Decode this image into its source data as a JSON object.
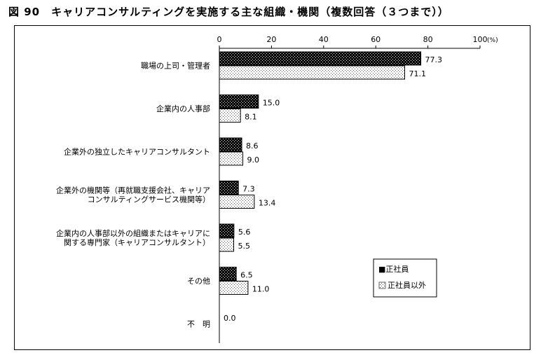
{
  "figure_title": "図 90　キャリアコンサルティングを実施する主な組織・機関（複数回答（３つまで））",
  "chart_data": {
    "type": "bar",
    "orientation": "horizontal",
    "title": "図 90　キャリアコンサルティングを実施する主な組織・機関（複数回答（３つまで））",
    "categories": [
      [
        "職場の上司・管理者"
      ],
      [
        "企業内の人事部"
      ],
      [
        "企業外の独立したキャリアコンサルタント"
      ],
      [
        "企業外の機関等（再就職支援会社、キャリア",
        "コンサルティングサービス機関等）"
      ],
      [
        "企業内の人事部以外の組織またはキャリアに",
        "関する専門家（キャリアコンサルタント）"
      ],
      [
        "その他"
      ],
      [
        "不　明"
      ]
    ],
    "series": [
      {
        "name": "■正社員",
        "values": [
          77.3,
          15.0,
          8.6,
          7.3,
          5.6,
          6.5,
          0.0
        ]
      },
      {
        "name": "正社員以外",
        "values": [
          71.1,
          8.1,
          9.0,
          13.4,
          5.5,
          11.0,
          null
        ]
      }
    ],
    "value_labels": [
      [
        "77.3",
        "15.0",
        "8.6",
        "7.3",
        "5.6",
        "6.5",
        "0.0"
      ],
      [
        "71.1",
        "8.1",
        "9.0",
        "13.4",
        "5.5",
        "11.0",
        ""
      ]
    ],
    "x_ticks": [
      "0",
      "20",
      "40",
      "60",
      "80",
      "100"
    ],
    "x_unit": "(%)",
    "xlim": [
      0,
      100
    ],
    "grid": false,
    "legend_position": "bottom-right",
    "colors": {
      "series_0": "#000000",
      "series_1": "#ffffff",
      "axis": "#000000"
    }
  }
}
